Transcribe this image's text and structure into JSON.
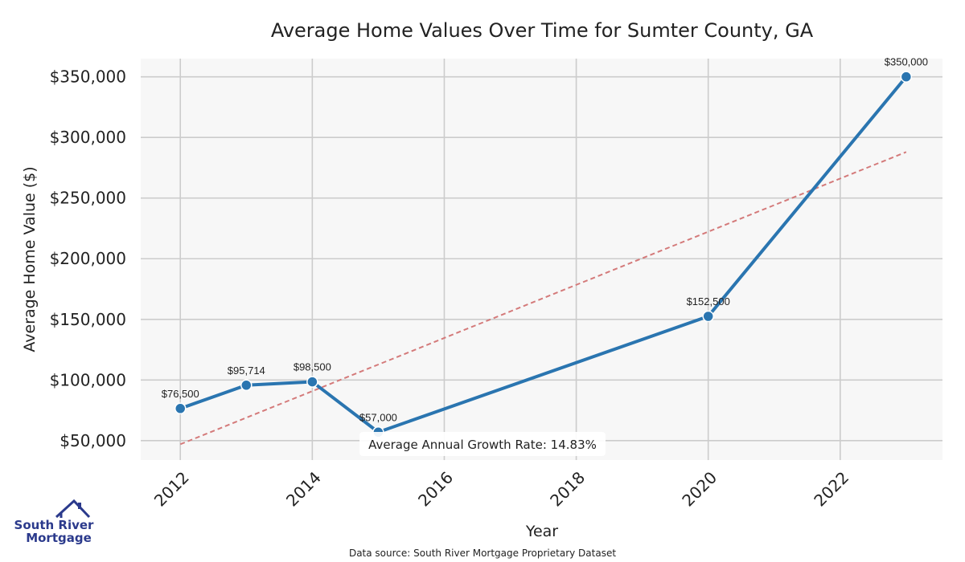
{
  "chart_data": {
    "type": "line",
    "title": "Average Home Values Over Time for Sumter County, GA",
    "xlabel": "Year",
    "ylabel": "Average Home Value ($)",
    "x": [
      2012,
      2013,
      2014,
      2015,
      2020,
      2023
    ],
    "values": [
      76500,
      95714,
      98500,
      57000,
      152500,
      350000
    ],
    "point_labels": [
      "$76,500",
      "$95,714",
      "$98,500",
      "$57,000",
      "$152,500",
      "$350,000"
    ],
    "xlim": [
      2011.4,
      2023.55
    ],
    "ylim": [
      34000,
      365000
    ],
    "xticks": [
      2012,
      2014,
      2016,
      2018,
      2020,
      2022
    ],
    "xtick_labels": [
      "2012",
      "2014",
      "2016",
      "2018",
      "2020",
      "2022"
    ],
    "yticks": [
      50000,
      100000,
      150000,
      200000,
      250000,
      300000,
      350000
    ],
    "ytick_labels": [
      "$50,000",
      "$100,000",
      "$150,000",
      "$200,000",
      "$250,000",
      "$300,000",
      "$350,000"
    ],
    "trend_line": {
      "x": [
        2012,
        2023
      ],
      "y": [
        47000,
        288000
      ]
    },
    "annotation": "Average Annual Growth Rate: 14.83%",
    "grid": true,
    "colors": {
      "line": "#2a75b0",
      "trend": "#d47a7a",
      "plot_bg": "#f7f7f7",
      "grid": "#cccccc"
    }
  },
  "footer": {
    "source": "Data source: South River Mortgage Proprietary Dataset",
    "logo_line1": "South River",
    "logo_line2": "Mortgage"
  },
  "logo": {
    "icon": "house-icon",
    "color": "#2b3a8c"
  }
}
